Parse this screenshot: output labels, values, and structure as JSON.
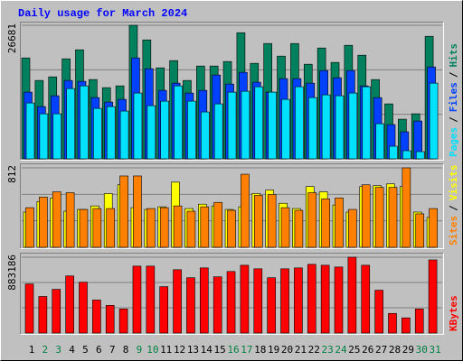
{
  "chart_data": {
    "type": "bar",
    "title": "Daily usage for March 2024",
    "categories": [
      "1",
      "2",
      "3",
      "4",
      "5",
      "6",
      "7",
      "8",
      "9",
      "10",
      "11",
      "12",
      "13",
      "14",
      "15",
      "16",
      "17",
      "18",
      "19",
      "20",
      "21",
      "22",
      "23",
      "24",
      "25",
      "26",
      "27",
      "28",
      "29",
      "30",
      "31"
    ],
    "category_colors": [
      "#000000",
      "#008040",
      "#008040",
      "#000000",
      "#000000",
      "#000000",
      "#000000",
      "#000000",
      "#008040",
      "#008040",
      "#000000",
      "#000000",
      "#000000",
      "#000000",
      "#000000",
      "#008040",
      "#008040",
      "#000000",
      "#000000",
      "#000000",
      "#000000",
      "#000000",
      "#008040",
      "#008040",
      "#000000",
      "#000000",
      "#000000",
      "#000000",
      "#000000",
      "#008040",
      "#008040"
    ],
    "label_separator": "/",
    "panels": [
      {
        "ylim": [
          0,
          26681
        ],
        "yticks": [
          26681
        ],
        "grid_divisions": 3,
        "series": [
          {
            "name": "Hits",
            "color": "#00805C",
            "values": [
              20160,
              15660,
              16380,
              19980,
              21780,
              15840,
              14220,
              14580,
              26681,
              23760,
              18180,
              19620,
              15660,
              18540,
              18540,
              19440,
              25200,
              19080,
              23040,
              20520,
              23040,
              18900,
              22140,
              19260,
              22680,
              20700,
              15840,
              10980,
              7920,
              9000,
              24480
            ]
          },
          {
            "name": "Files",
            "color": "#0040FF",
            "values": [
              13320,
              10440,
              12600,
              15660,
              15480,
              12240,
              11340,
              11880,
              20160,
              18000,
              13680,
              15120,
              13140,
              13680,
              16740,
              14940,
              17280,
              15300,
              13320,
              16020,
              16020,
              15120,
              17640,
              16200,
              17640,
              14580,
              12240,
              6840,
              5400,
              7560,
              18360
            ]
          },
          {
            "name": "Pages",
            "color": "#00E0FF",
            "values": [
              11160,
              9000,
              9000,
              14040,
              14580,
              10080,
              10440,
              9540,
              13140,
              10620,
              11520,
              14580,
              11520,
              9360,
              10980,
              13320,
              13500,
              14400,
              13320,
              11880,
              14400,
              12240,
              12780,
              12600,
              13140,
              14400,
              7020,
              2520,
              1620,
              1440,
              15120
            ]
          }
        ]
      },
      {
        "ylim": [
          0,
          812
        ],
        "yticks": [
          812
        ],
        "grid_divisions": 3,
        "series": [
          {
            "name": "Visits",
            "color": "#FFFF00",
            "values": [
              360,
              468,
              504,
              369,
              387,
              423,
              549,
              639,
              405,
              387,
              414,
              666,
              396,
              441,
              423,
              387,
              414,
              549,
              585,
              450,
              396,
              621,
              567,
              432,
              360,
              621,
              630,
              648,
              621,
              360,
              306
            ]
          },
          {
            "name": "Sites",
            "color": "#FF8000",
            "values": [
              405,
              513,
              567,
              558,
              387,
              396,
              396,
              729,
              729,
              396,
              405,
              423,
              369,
              414,
              459,
              378,
              747,
              531,
              540,
              405,
              378,
              558,
              495,
              504,
              387,
              639,
              612,
              612,
              812,
              342,
              396
            ]
          }
        ]
      },
      {
        "ylim": [
          0,
          883186
        ],
        "yticks": [
          883186
        ],
        "grid_divisions": 3,
        "series": [
          {
            "name": "KBytes",
            "color": "#FF0000",
            "values": [
              571450,
              426000,
              509100,
              665000,
              592200,
              384400,
              322100,
              280500,
              779300,
              779300,
              540300,
              737700,
              644200,
              758500,
              654600,
              716900,
              789600,
              748100,
              644200,
              748100,
              758500,
              800000,
              789600,
              768900,
              883186,
              789600,
              498700,
              228600,
              176600,
              280500,
              852000
            ]
          }
        ]
      }
    ]
  }
}
